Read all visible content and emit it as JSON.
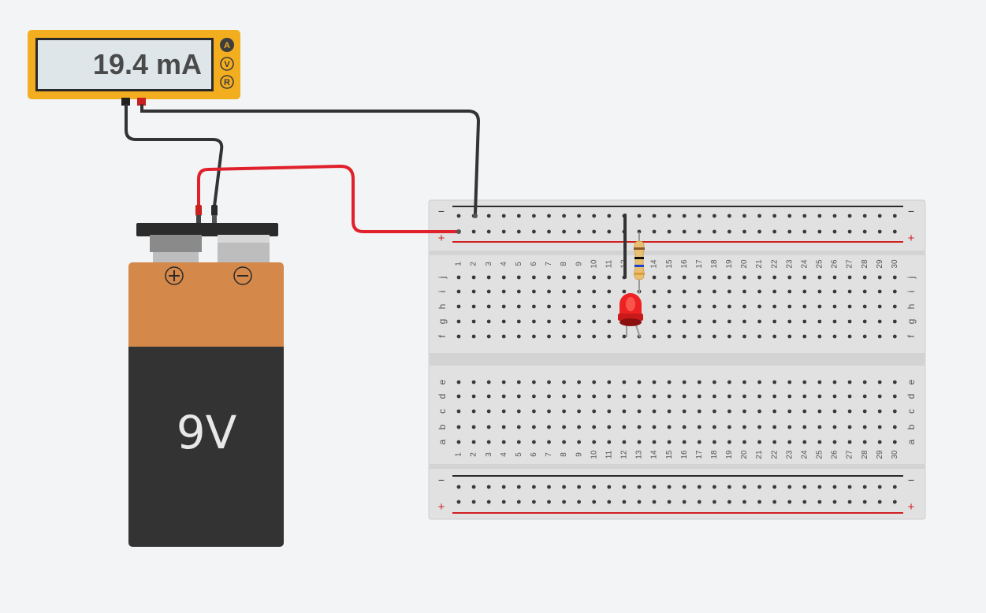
{
  "multimeter": {
    "reading": "19.4 mA",
    "mode_buttons": [
      "A",
      "V",
      "R"
    ],
    "active_mode": "A"
  },
  "battery": {
    "label": "9V",
    "positive_symbol": "+",
    "negative_symbol": "−"
  },
  "breadboard": {
    "columns": 30,
    "rail_minus": "−",
    "rail_plus": "+",
    "top_rows": [
      "j",
      "i",
      "h",
      "g",
      "f"
    ],
    "bottom_rows": [
      "e",
      "d",
      "c",
      "b",
      "a"
    ]
  },
  "components": {
    "resistor": "resistor",
    "led": "led-red"
  },
  "colors": {
    "multimeter_body": "#f3ae1f",
    "display_bg": "#dfe6e9",
    "battery_copper": "#d4884a",
    "battery_body": "#333333",
    "wire_black": "#333333",
    "wire_red": "#e0202a",
    "led_red": "#ee2222",
    "rail_red": "#d02020"
  }
}
